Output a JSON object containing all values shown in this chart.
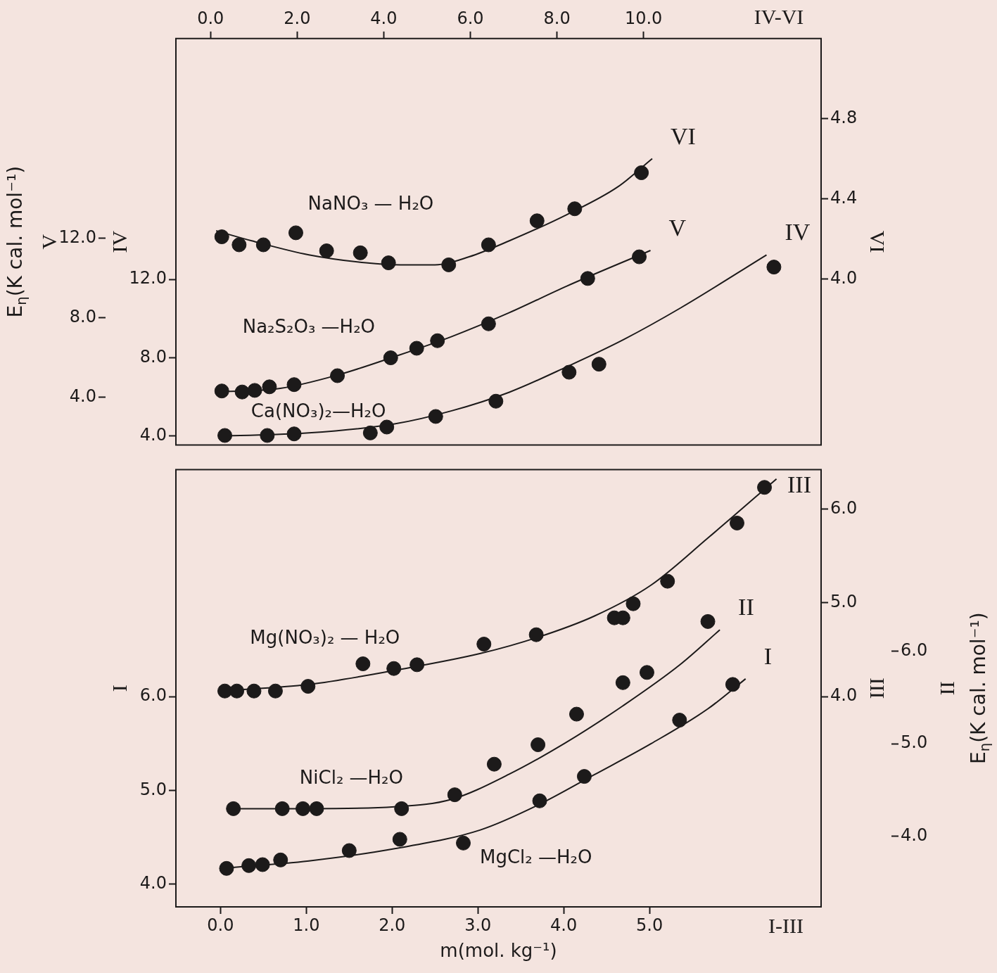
{
  "chart_data": [
    {
      "type": "scatter",
      "xlim": [
        -0.8,
        14.1
      ],
      "xticks": [
        {
          "value": 0,
          "label": "0.0"
        },
        {
          "value": 2,
          "label": "2.0"
        },
        {
          "value": 4,
          "label": "4.0"
        },
        {
          "value": 6,
          "label": "6.0"
        },
        {
          "value": 8,
          "label": "8.0"
        },
        {
          "value": 10,
          "label": "10.0"
        }
      ],
      "ylabel": "IV",
      "ylim": [
        3.54,
        24.3
      ],
      "yticks": [
        {
          "value": 4,
          "label": "4.0"
        },
        {
          "value": 8,
          "label": "8.0"
        },
        {
          "value": 12,
          "label": "12.0"
        }
      ],
      "y2label": "VI",
      "y2lim": [
        3.17,
        5.2
      ],
      "y2ticks": [
        {
          "value": 4,
          "label": "4.0"
        },
        {
          "value": 4.4,
          "label": "4.4"
        },
        {
          "value": 4.8,
          "label": "4.8"
        }
      ],
      "y3label": "V",
      "y3lim": [
        1.6,
        22.05
      ],
      "y3ticks": [
        {
          "value": 4,
          "label": "4.0"
        },
        {
          "value": 8,
          "label": "8.0"
        },
        {
          "value": 12,
          "label": "12.0"
        }
      ],
      "annotations": [
        "E$_{η}$(K cal. mol⁻¹)",
        "IV-VI"
      ],
      "series": [
        {
          "name": "NaNO₃ — H₂O",
          "axis": "y2",
          "marker": "circle",
          "color": "#1c1a1a",
          "x": [
            0.26,
            0.66,
            1.22,
            1.97,
            2.68,
            3.46,
            4.11,
            5.5,
            6.42,
            7.54,
            8.41,
            9.95
          ],
          "values": [
            4.21,
            4.17,
            4.17,
            4.23,
            4.14,
            4.13,
            4.08,
            4.07,
            4.17,
            4.29,
            4.35,
            4.53
          ]
        },
        {
          "type": "line",
          "name": "VI",
          "axis": "y2",
          "marker": "none",
          "color": "#1c1a1a",
          "x": [
            0.13,
            0.95,
            2.27,
            3.59,
            4.39,
            5.18,
            5.97,
            6.9,
            8.22,
            9.41,
            10.2
          ],
          "values": [
            4.24,
            4.19,
            4.12,
            4.08,
            4.07,
            4.07,
            4.11,
            4.19,
            4.32,
            4.46,
            4.6
          ]
        },
        {
          "name": "Na₂S₂O₃ —H₂O",
          "axis": "y3",
          "marker": "circle",
          "color": "#1c1a1a",
          "x": [
            0.26,
            0.73,
            1.02,
            1.36,
            1.93,
            2.93,
            4.16,
            4.76,
            5.24,
            6.42,
            8.71,
            9.9
          ],
          "values": [
            4.32,
            4.27,
            4.35,
            4.53,
            4.64,
            5.09,
            5.99,
            6.47,
            6.85,
            7.7,
            9.98,
            11.07
          ]
        },
        {
          "type": "line",
          "name": "V",
          "axis": "y3",
          "marker": "none",
          "color": "#1c1a1a",
          "x": [
            0.13,
            1.61,
            2.93,
            4.25,
            5.57,
            6.9,
            8.22,
            10.16
          ],
          "values": [
            4.27,
            4.45,
            5.12,
            6.05,
            7.06,
            8.26,
            9.59,
            11.39
          ]
        },
        {
          "name": "Ca(NO₃)₂—H₂O",
          "marker": "circle",
          "color": "#1c1a1a",
          "x": [
            0.33,
            1.31,
            1.93,
            3.69,
            4.07,
            5.2,
            6.59,
            8.28,
            8.97,
            13.01
          ],
          "values": [
            4.03,
            4.03,
            4.11,
            4.16,
            4.46,
            5.0,
            5.78,
            7.26,
            7.67,
            12.63
          ]
        },
        {
          "type": "line",
          "name": "IV",
          "marker": "none",
          "color": "#1c1a1a",
          "x": [
            0.22,
            2.27,
            4.25,
            5.57,
            6.9,
            8.22,
            9.54,
            10.86,
            12.84
          ],
          "values": [
            4.0,
            4.16,
            4.62,
            5.29,
            6.24,
            7.53,
            8.93,
            10.55,
            13.25
          ]
        }
      ]
    },
    {
      "type": "scatter",
      "xlabel": "m(mol. kg⁻¹)",
      "xlim": [
        -0.52,
        7.0
      ],
      "xticks": [
        {
          "value": 0,
          "label": "0.0"
        },
        {
          "value": 1,
          "label": "1.0"
        },
        {
          "value": 2,
          "label": "2.0"
        },
        {
          "value": 3,
          "label": "3.0"
        },
        {
          "value": 4,
          "label": "4.0"
        },
        {
          "value": 5,
          "label": "5.0"
        }
      ],
      "ylabel": "I",
      "ylim": [
        3.76,
        8.42
      ],
      "yticks": [
        {
          "value": 4,
          "label": "4.0"
        },
        {
          "value": 5,
          "label": "5.0"
        },
        {
          "value": 6,
          "label": "6.0"
        }
      ],
      "y2label": "II",
      "y2lim": [
        3.24,
        7.96
      ],
      "y2ticks": [
        {
          "value": 4,
          "label": "4.0"
        },
        {
          "value": 5,
          "label": "5.0"
        },
        {
          "value": 6,
          "label": "6.0"
        }
      ],
      "y3label": "III",
      "y3lim": [
        1.76,
        6.42
      ],
      "y3ticks": [
        {
          "value": 4,
          "label": "4.0"
        },
        {
          "value": 5,
          "label": "5.0"
        },
        {
          "value": 6,
          "label": "6.0"
        }
      ],
      "annotations": [
        "E$_{η}$(K cal. mol⁻¹)",
        "I-III"
      ],
      "series": [
        {
          "name": "Mg(NO₃)₂ — H₂O",
          "axis": "y3",
          "marker": "circle",
          "color": "#1c1a1a",
          "x": [
            0.05,
            0.19,
            0.39,
            0.64,
            1.02,
            1.66,
            2.02,
            2.29,
            3.07,
            3.68,
            4.59,
            4.69,
            4.81,
            5.21,
            6.02,
            6.34
          ],
          "values": [
            4.06,
            4.06,
            4.06,
            4.06,
            4.11,
            4.35,
            4.3,
            4.34,
            4.56,
            4.66,
            4.84,
            4.84,
            4.99,
            5.23,
            5.85,
            6.23
          ]
        },
        {
          "type": "line",
          "name": "III",
          "axis": "y3",
          "marker": "none",
          "color": "#1c1a1a",
          "x": [
            0,
            1.03,
            2.03,
            3.03,
            3.69,
            4.36,
            5.02,
            5.68,
            6.48
          ],
          "values": [
            4.06,
            4.13,
            4.28,
            4.46,
            4.63,
            4.86,
            5.19,
            5.69,
            6.32
          ]
        },
        {
          "name": "NiCl₂ —H₂O",
          "axis": "y2",
          "marker": "circle",
          "color": "#1c1a1a",
          "x": [
            0.15,
            0.72,
            0.96,
            1.12,
            2.11,
            2.73,
            3.19,
            3.7,
            4.15,
            4.69,
            4.97,
            5.68
          ],
          "values": [
            4.3,
            4.3,
            4.3,
            4.3,
            4.3,
            4.45,
            4.78,
            4.99,
            5.32,
            5.66,
            5.77,
            6.32
          ]
        },
        {
          "type": "line",
          "name": "II",
          "axis": "y2",
          "marker": "none",
          "color": "#1c1a1a",
          "x": [
            0.09,
            1.03,
            2.03,
            2.69,
            3.36,
            4.02,
            4.69,
            5.35,
            5.82
          ],
          "values": [
            4.3,
            4.3,
            4.32,
            4.4,
            4.67,
            5.01,
            5.41,
            5.85,
            6.23
          ]
        },
        {
          "name": "MgCl₂ —H₂O",
          "marker": "circle",
          "color": "#1c1a1a",
          "x": [
            0.07,
            0.33,
            0.49,
            0.7,
            1.5,
            2.09,
            2.83,
            3.72,
            4.24,
            5.35,
            5.97
          ],
          "values": [
            4.17,
            4.2,
            4.21,
            4.26,
            4.36,
            4.48,
            4.44,
            4.89,
            5.15,
            5.75,
            6.13
          ]
        },
        {
          "type": "line",
          "name": "I",
          "marker": "none",
          "color": "#1c1a1a",
          "x": [
            0,
            1.03,
            2.03,
            3.03,
            3.69,
            4.36,
            5.02,
            5.68,
            6.12
          ],
          "values": [
            4.17,
            4.25,
            4.38,
            4.58,
            4.84,
            5.17,
            5.5,
            5.87,
            6.19
          ]
        }
      ]
    }
  ]
}
